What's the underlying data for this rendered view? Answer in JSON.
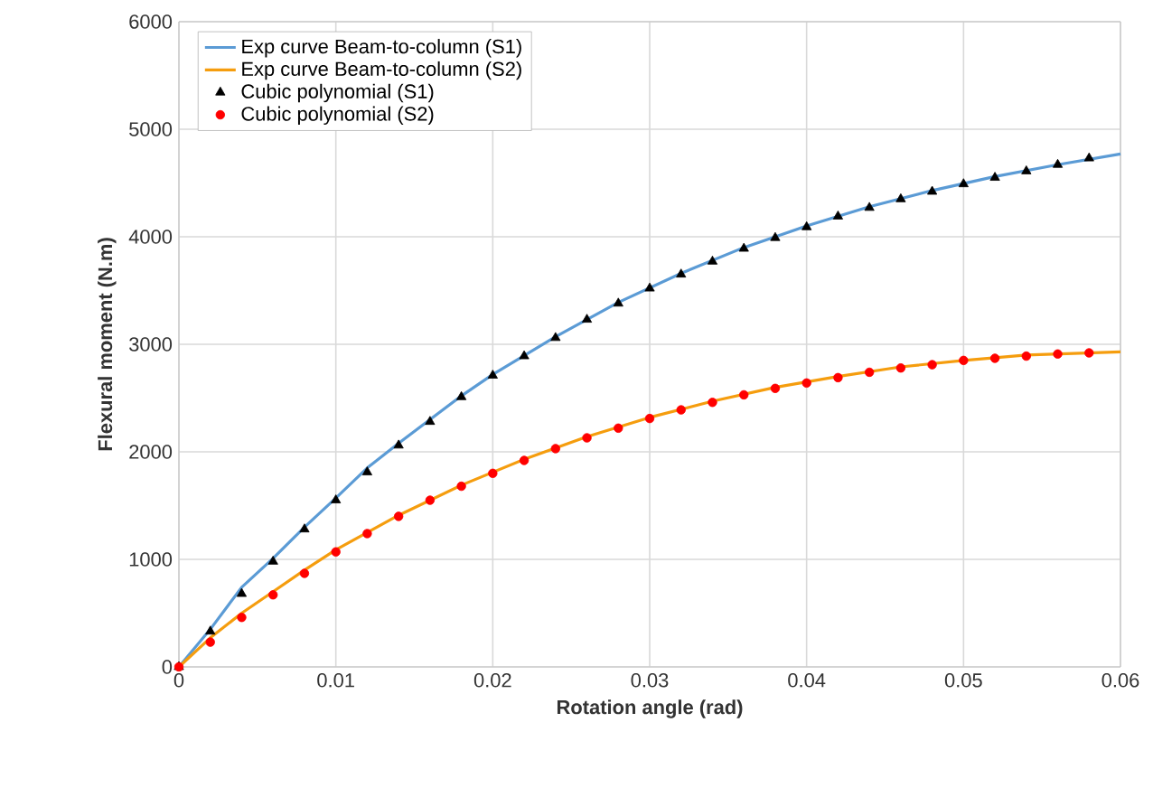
{
  "chart_data": {
    "type": "line",
    "xlabel": "Rotation angle (rad)",
    "ylabel": "Flexural moment (N.m)",
    "xlim": [
      0,
      0.06
    ],
    "ylim": [
      0,
      6000
    ],
    "xticks": [
      0,
      0.01,
      0.02,
      0.03,
      0.04,
      0.05,
      0.06
    ],
    "yticks": [
      0,
      1000,
      2000,
      3000,
      4000,
      5000,
      6000
    ],
    "grid": true,
    "legend": "top left",
    "series": [
      {
        "name": "Exp curve Beam-to-column (S1)",
        "color": "#5b9bd5",
        "marker": "none",
        "x": [
          0,
          0.002,
          0.004,
          0.006,
          0.008,
          0.01,
          0.012,
          0.014,
          0.016,
          0.018,
          0.02,
          0.024,
          0.028,
          0.032,
          0.036,
          0.04,
          0.044,
          0.048,
          0.052,
          0.056,
          0.06
        ],
        "values": [
          0,
          350,
          740,
          1010,
          1300,
          1570,
          1850,
          2080,
          2300,
          2520,
          2720,
          3070,
          3390,
          3660,
          3900,
          4100,
          4280,
          4430,
          4560,
          4670,
          4770
        ]
      },
      {
        "name": "Exp curve Beam-to-column (S2)",
        "color": "#f59d0e",
        "marker": "none",
        "x": [
          0,
          0.002,
          0.004,
          0.006,
          0.008,
          0.01,
          0.014,
          0.018,
          0.022,
          0.026,
          0.03,
          0.034,
          0.038,
          0.042,
          0.046,
          0.05,
          0.054,
          0.06
        ],
        "values": [
          0,
          270,
          500,
          700,
          900,
          1090,
          1410,
          1690,
          1930,
          2140,
          2320,
          2470,
          2600,
          2700,
          2790,
          2850,
          2900,
          2930
        ]
      },
      {
        "name": "Cubic polynomial (S1)",
        "type": "scatter",
        "color": "#000000",
        "marker": "triangle",
        "x": [
          0,
          0.002,
          0.004,
          0.006,
          0.008,
          0.01,
          0.012,
          0.014,
          0.016,
          0.018,
          0.02,
          0.022,
          0.024,
          0.026,
          0.028,
          0.03,
          0.032,
          0.034,
          0.036,
          0.038,
          0.04,
          0.042,
          0.044,
          0.046,
          0.048,
          0.05,
          0.052,
          0.054,
          0.056,
          0.058
        ],
        "values": [
          0,
          330,
          680,
          980,
          1280,
          1550,
          1810,
          2060,
          2280,
          2510,
          2710,
          2890,
          3060,
          3230,
          3380,
          3520,
          3650,
          3770,
          3890,
          3990,
          4090,
          4190,
          4270,
          4350,
          4420,
          4490,
          4550,
          4610,
          4670,
          4730
        ]
      },
      {
        "name": "Cubic polynomial (S2)",
        "type": "scatter",
        "color": "#ff0000",
        "marker": "circle",
        "x": [
          0,
          0.002,
          0.004,
          0.006,
          0.008,
          0.01,
          0.012,
          0.014,
          0.016,
          0.018,
          0.02,
          0.022,
          0.024,
          0.026,
          0.028,
          0.03,
          0.032,
          0.034,
          0.036,
          0.038,
          0.04,
          0.042,
          0.044,
          0.046,
          0.048,
          0.05,
          0.052,
          0.054,
          0.056,
          0.058
        ],
        "values": [
          0,
          230,
          460,
          670,
          870,
          1070,
          1240,
          1400,
          1550,
          1680,
          1800,
          1920,
          2030,
          2130,
          2220,
          2310,
          2390,
          2460,
          2530,
          2590,
          2640,
          2690,
          2740,
          2780,
          2810,
          2850,
          2870,
          2890,
          2910,
          2920
        ]
      }
    ]
  }
}
